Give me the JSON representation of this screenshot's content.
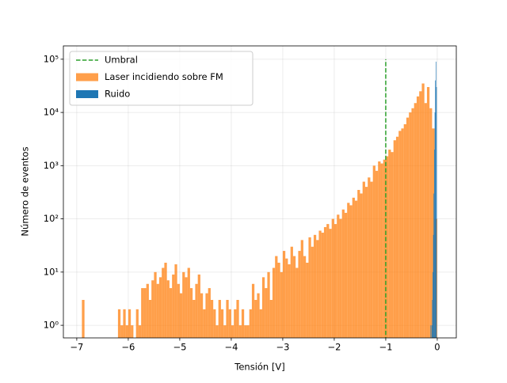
{
  "chart_data": {
    "type": "histogram",
    "xlabel": "Tensión [V]",
    "ylabel": "Número de eventos",
    "log_y": true,
    "grid": true,
    "legend": "upper left",
    "xlim": [
      -7.26,
      0.37
    ],
    "ylim": [
      0.58,
      178000
    ],
    "xticks": [
      {
        "value": -7,
        "label": "−7"
      },
      {
        "value": -6,
        "label": "−6"
      },
      {
        "value": -5,
        "label": "−5"
      },
      {
        "value": -4,
        "label": "−4"
      },
      {
        "value": -3,
        "label": "−3"
      },
      {
        "value": -2,
        "label": "−2"
      },
      {
        "value": -1,
        "label": "−1"
      },
      0
    ],
    "yticks": [
      {
        "value": 1,
        "label": "10⁰"
      },
      {
        "value": 10,
        "label": "10¹"
      },
      {
        "value": 100,
        "label": "10²"
      },
      {
        "value": 1000,
        "label": "10³"
      },
      {
        "value": 10000,
        "label": "10⁴"
      },
      {
        "value": 100000,
        "label": "10⁵"
      }
    ],
    "lines": [
      {
        "name": "Umbral",
        "color": "#2ca02c",
        "x": -1,
        "ymin": 0.5,
        "ymax": 100000
      }
    ],
    "series": [
      {
        "name": "Laser incidiendo sobre FM",
        "color": "#ff7f0e",
        "bins": [
          -7,
          -6.95,
          -6.9,
          -6.85,
          -6.8,
          -6.75,
          -6.7,
          -6.65,
          -6.6,
          -6.55,
          -6.5,
          -6.45,
          -6.4,
          -6.35,
          -6.3,
          -6.25,
          -6.2,
          -6.15,
          -6.1,
          -6.05,
          -6,
          -5.95,
          -5.9,
          -5.85,
          -5.8,
          -5.75,
          -5.7,
          -5.65,
          -5.6,
          -5.55,
          -5.5,
          -5.45,
          -5.4,
          -5.35,
          -5.3,
          -5.25,
          -5.2,
          -5.15,
          -5.1,
          -5.05,
          -5,
          -4.95,
          -4.9,
          -4.85,
          -4.8,
          -4.75,
          -4.7,
          -4.65,
          -4.6,
          -4.55,
          -4.5,
          -4.45,
          -4.4,
          -4.35,
          -4.3,
          -4.25,
          -4.2,
          -4.15,
          -4.1,
          -4.05,
          -4,
          -3.95,
          -3.9,
          -3.85,
          -3.8,
          -3.75,
          -3.7,
          -3.65,
          -3.6,
          -3.55,
          -3.5,
          -3.45,
          -3.4,
          -3.35,
          -3.3,
          -3.25,
          -3.2,
          -3.15,
          -3.1,
          -3.05,
          -3,
          -2.95,
          -2.9,
          -2.85,
          -2.8,
          -2.75,
          -2.7,
          -2.65,
          -2.6,
          -2.55,
          -2.5,
          -2.45,
          -2.4,
          -2.35,
          -2.3,
          -2.25,
          -2.2,
          -2.15,
          -2.1,
          -2.05,
          -2,
          -1.95,
          -1.9,
          -1.85,
          -1.8,
          -1.75,
          -1.7,
          -1.65,
          -1.6,
          -1.55,
          -1.5,
          -1.45,
          -1.4,
          -1.35,
          -1.3,
          -1.25,
          -1.2,
          -1.15,
          -1.1,
          -1.05,
          -1,
          -0.95,
          -0.9,
          -0.85,
          -0.8,
          -0.75,
          -0.7,
          -0.65,
          -0.6,
          -0.55,
          -0.5,
          -0.45,
          -0.4,
          -0.35,
          -0.3,
          -0.25,
          -0.2,
          -0.15,
          -0.1,
          -0.05,
          0
        ],
        "values": [
          0,
          0,
          3,
          0,
          0,
          0,
          0,
          0,
          0,
          0,
          0,
          0,
          0,
          0,
          0,
          0,
          2,
          1,
          2,
          1,
          2,
          1,
          0,
          2,
          1,
          5,
          5,
          6,
          3,
          7,
          10,
          6,
          8,
          12,
          15,
          7,
          5,
          9,
          14,
          6,
          4,
          10,
          8,
          12,
          5,
          3,
          6,
          9,
          4,
          2,
          4,
          5,
          3,
          2,
          1,
          3,
          2,
          1,
          3,
          2,
          1,
          2,
          3,
          1,
          2,
          1,
          1,
          2,
          6,
          3,
          4,
          2,
          8,
          5,
          10,
          3,
          12,
          20,
          15,
          10,
          25,
          18,
          14,
          30,
          20,
          12,
          25,
          40,
          20,
          15,
          45,
          30,
          50,
          40,
          60,
          55,
          70,
          80,
          65,
          100,
          80,
          120,
          100,
          150,
          130,
          200,
          180,
          250,
          220,
          350,
          300,
          500,
          400,
          600,
          500,
          1000,
          800,
          1200,
          1100,
          1300,
          1500,
          2000,
          1800,
          3000,
          3500,
          4500,
          5000,
          6000,
          8000,
          10000,
          12000,
          15000,
          20000,
          25000,
          35000,
          15000,
          30000,
          12000,
          5000,
          100
        ]
      },
      {
        "name": "Ruido",
        "color": "#1f77b4",
        "bins": [
          -0.13,
          -0.12,
          -0.11,
          -0.1,
          -0.09,
          -0.08,
          -0.07,
          -0.06,
          -0.05,
          -0.04,
          -0.03,
          -0.02,
          -0.01,
          0
        ],
        "values": [
          1,
          0,
          1,
          3,
          10,
          50,
          300,
          2000,
          10000,
          40000,
          90000,
          30000,
          0
        ]
      }
    ]
  }
}
